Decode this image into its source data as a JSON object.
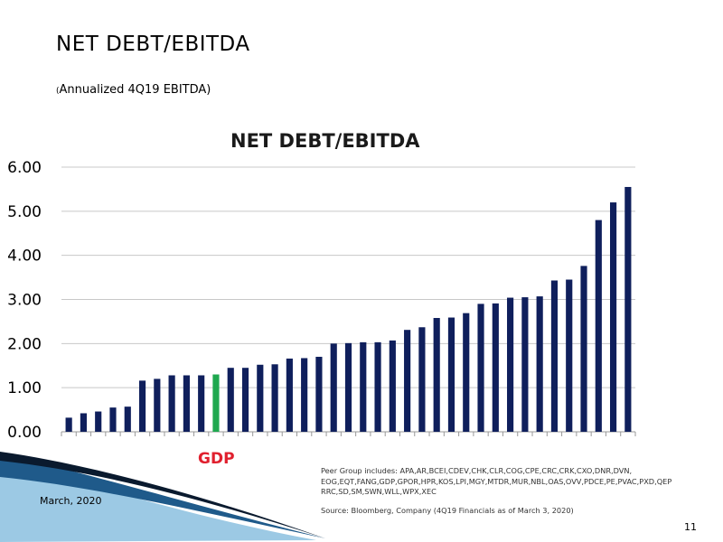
{
  "slide": {
    "title": "NET DEBT/EBITDA",
    "subtitle_paren": "(",
    "subtitle": "Annualized 4Q19 EBITDA)",
    "date": "March, 2020",
    "page_number": "11"
  },
  "notes": {
    "peer_group": "Peer Group includes: APA,AR,BCEI,CDEV,CHK,CLR,COG,CPE,CRC,CRK,CXO,DNR,DVN, EOG,EQT,FANG,GDP,GPOR,HPR,KOS,LPI,MGY,MTDR,MUR,NBL,OAS,OVV,PDCE,PE,PVAC,PXD,QEP RRC,SD,SM,SWN,WLL,WPX,XEC",
    "source": "Source: Bloomberg, Company (4Q19 Financials as of March 3, 2020)"
  },
  "colors": {
    "bar": "#0f1f5c",
    "highlight": "#1fa84f",
    "highlight_label": "#e0202e",
    "grid": "#c8c8c8",
    "swoosh_dark": "#1f5a8a",
    "swoosh_light": "#7fb6d8"
  },
  "chart_data": {
    "type": "bar",
    "title": "NET DEBT/EBITDA",
    "xlabel": "",
    "ylabel": "",
    "ylim": [
      0,
      6
    ],
    "yticks": [
      "0.00",
      "1.00",
      "2.00",
      "3.00",
      "4.00",
      "5.00",
      "6.00"
    ],
    "grid": true,
    "highlight_label": "GDP",
    "highlight_index": 10,
    "values": [
      0.32,
      0.42,
      0.46,
      0.55,
      0.57,
      1.16,
      1.2,
      1.28,
      1.28,
      1.28,
      1.3,
      1.45,
      1.45,
      1.52,
      1.53,
      1.66,
      1.67,
      1.7,
      2.0,
      2.01,
      2.03,
      2.03,
      2.07,
      2.31,
      2.37,
      2.58,
      2.59,
      2.69,
      2.9,
      2.91,
      3.04,
      3.05,
      3.07,
      3.43,
      3.45,
      3.76,
      4.8,
      5.2,
      5.55
    ]
  }
}
